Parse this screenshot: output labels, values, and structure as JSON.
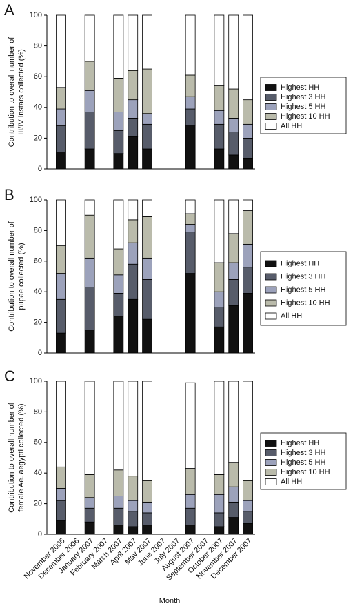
{
  "chart_data": [
    {
      "type": "stacked-bar",
      "panel_label": "A",
      "y_label": [
        "Contribution to overall number of",
        "III/IV instars collected (%)"
      ],
      "ylim": [
        0,
        100
      ],
      "yticks": [
        0,
        20,
        40,
        60,
        80,
        100
      ],
      "series": [
        {
          "name": "Highest HH",
          "color": "#111111",
          "values": [
            11,
            null,
            13,
            null,
            10,
            21,
            13,
            null,
            null,
            28,
            null,
            13,
            9,
            7
          ]
        },
        {
          "name": "Highest 3 HH",
          "color": "#575c6a",
          "values": [
            17,
            null,
            24,
            null,
            15,
            12,
            16,
            null,
            null,
            11,
            null,
            16,
            15,
            13
          ]
        },
        {
          "name": "Highest 5 HH",
          "color": "#9ca2bb",
          "values": [
            11,
            null,
            14,
            null,
            12,
            12,
            7,
            null,
            null,
            8,
            null,
            9,
            9,
            9
          ]
        },
        {
          "name": "Highest 10 HH",
          "color": "#babbab",
          "values": [
            14,
            null,
            19,
            null,
            22,
            19,
            29,
            null,
            null,
            14,
            null,
            16,
            19,
            16
          ]
        },
        {
          "name": "All HH",
          "color": "#ffffff",
          "values": [
            47,
            null,
            30,
            null,
            41,
            36,
            35,
            null,
            null,
            39,
            null,
            46,
            48,
            55
          ]
        }
      ]
    },
    {
      "type": "stacked-bar",
      "panel_label": "B",
      "y_label": [
        "Contribution to overall number of",
        "pupae collected (%)"
      ],
      "ylim": [
        0,
        100
      ],
      "yticks": [
        0,
        20,
        40,
        60,
        80,
        100
      ],
      "series": [
        {
          "name": "Highest HH",
          "color": "#111111",
          "values": [
            13,
            null,
            15,
            null,
            24,
            35,
            22,
            null,
            null,
            52,
            null,
            17,
            31,
            39
          ]
        },
        {
          "name": "Highest 3 HH",
          "color": "#575c6a",
          "values": [
            22,
            null,
            28,
            null,
            15,
            23,
            26,
            null,
            null,
            27,
            null,
            13,
            17,
            17
          ]
        },
        {
          "name": "Highest 5 HH",
          "color": "#9ca2bb",
          "values": [
            17,
            null,
            19,
            null,
            12,
            14,
            14,
            null,
            null,
            5,
            null,
            10,
            11,
            15
          ]
        },
        {
          "name": "Highest 10 HH",
          "color": "#babbab",
          "values": [
            18,
            null,
            28,
            null,
            17,
            15,
            27,
            null,
            null,
            7,
            null,
            19,
            19,
            22
          ]
        },
        {
          "name": "All HH",
          "color": "#ffffff",
          "values": [
            30,
            null,
            10,
            null,
            32,
            13,
            11,
            null,
            null,
            9,
            null,
            41,
            22,
            7
          ]
        }
      ]
    },
    {
      "type": "stacked-bar",
      "panel_label": "C",
      "y_label": [
        "Contribution to overall number of",
        "female Ae. aegypti collected (%)"
      ],
      "x_label": "Month",
      "categories": [
        "November 2006",
        "December 2006",
        "January 2007",
        "February 2007",
        "March 2007",
        "April 2007",
        "May 2007",
        "June 2007",
        "July 2007",
        "August 2007",
        "September 2007",
        "October 2007",
        "November 2007",
        "December 2007"
      ],
      "ylim": [
        0,
        100
      ],
      "yticks": [
        0,
        20,
        40,
        60,
        80,
        100
      ],
      "series": [
        {
          "name": "Highest HH",
          "color": "#111111",
          "values": [
            9,
            null,
            8,
            null,
            6,
            5,
            6,
            null,
            null,
            6,
            null,
            5,
            11,
            7
          ]
        },
        {
          "name": "Highest 3 HH",
          "color": "#575c6a",
          "values": [
            13,
            null,
            9,
            null,
            11,
            10,
            8,
            null,
            null,
            11,
            null,
            9,
            10,
            8
          ]
        },
        {
          "name": "Highest 5 HH",
          "color": "#9ca2bb",
          "values": [
            8,
            null,
            7,
            null,
            8,
            7,
            7,
            null,
            null,
            9,
            null,
            12,
            10,
            7
          ]
        },
        {
          "name": "Highest 10 HH",
          "color": "#babbab",
          "values": [
            14,
            null,
            15,
            null,
            17,
            16,
            14,
            null,
            null,
            17,
            null,
            13,
            16,
            13
          ]
        },
        {
          "name": "All HH",
          "color": "#ffffff",
          "values": [
            56,
            null,
            61,
            null,
            58,
            62,
            65,
            null,
            null,
            56,
            null,
            61,
            53,
            65
          ]
        }
      ]
    }
  ]
}
